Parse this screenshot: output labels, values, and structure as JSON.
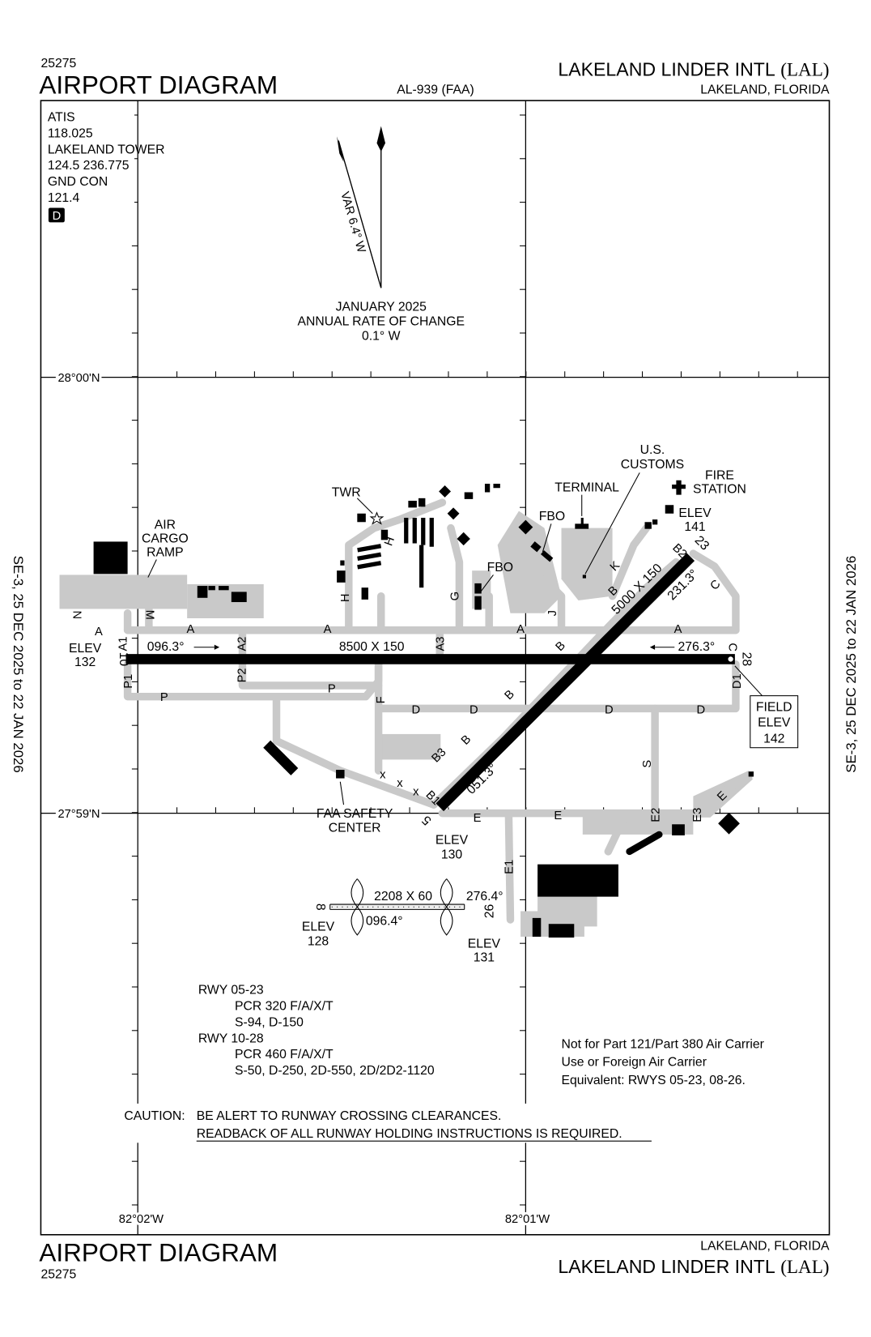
{
  "header": {
    "chart_number": "25275",
    "title": "AIRPORT DIAGRAM",
    "procedure_id": "AL-939 (FAA)",
    "airport_name": "LAKELAND LINDER INTL",
    "airport_id": "(LAL)",
    "location": "LAKELAND, FLORIDA"
  },
  "footer": {
    "chart_number": "25275",
    "title": "AIRPORT DIAGRAM",
    "airport_name": "LAKELAND LINDER INTL",
    "airport_id": "(LAL)",
    "location": "LAKELAND, FLORIDA"
  },
  "side_margin": {
    "left": "SE-3,  25 DEC 2025  to  22 JAN 2026",
    "right": "SE-3,  25 DEC 2025  to  22 JAN 2026"
  },
  "frequencies": [
    "ATIS",
    "118.025",
    "LAKELAND TOWER",
    "124.5 236.775",
    "GND CON",
    "121.4"
  ],
  "datalink_badge": "D",
  "magnetic": {
    "variation": "VAR 6.4° W",
    "date": "JANUARY 2025",
    "rate_label": "ANNUAL RATE OF CHANGE",
    "rate": "0.1° W"
  },
  "coordinates": {
    "lat_north": "28°00'N",
    "lat_south": "27°59'N",
    "lon_west": "82°02'W",
    "lon_east": "82°01'W"
  },
  "runways": {
    "r10_28": {
      "end_10": "10",
      "end_28": "28",
      "dims": "8500 X 150",
      "hdg_10": "096.3°",
      "hdg_28": "276.3°",
      "elev_label": "ELEV",
      "elev_10": "132"
    },
    "r05_23": {
      "end_5": "5",
      "end_23": "23",
      "dims": "5000 X 150",
      "hdg_5": "051.3°",
      "hdg_23": "231.3°",
      "elev_label": "ELEV",
      "elev_5": "130",
      "elev_23": "141"
    },
    "r08_26": {
      "end_8": "8",
      "end_26": "26",
      "dims": "2208 X 60",
      "hdg_8": "096.4°",
      "hdg_26": "276.4°",
      "elev_label": "ELEV",
      "elev_8": "128",
      "elev_26": "131"
    }
  },
  "field_elev": {
    "line1": "FIELD",
    "line2": "ELEV",
    "value": "142"
  },
  "facilities": {
    "twr": "TWR",
    "air_cargo": [
      "AIR",
      "CARGO",
      "RAMP"
    ],
    "fbo": "FBO",
    "terminal": "TERMINAL",
    "customs": [
      "U.S.",
      "CUSTOMS"
    ],
    "fire": [
      "FIRE",
      "STATION"
    ],
    "faa_safety": [
      "FAA SAFETY",
      "CENTER"
    ]
  },
  "taxiways": {
    "A": "A",
    "A1": "A1",
    "A2": "A2",
    "A3": "A3",
    "B": "B",
    "B1": "B1",
    "B2": "B2",
    "B3": "B3",
    "C": "C",
    "D": "D",
    "D1": "D1",
    "E": "E",
    "E1": "E1",
    "E2": "E2",
    "E3": "E3",
    "F": "F",
    "G": "G",
    "H": "H",
    "J": "J",
    "K": "K",
    "M": "M",
    "N": "N",
    "P": "P",
    "P1": "P1",
    "P2": "P2",
    "S": "S",
    "x": "x"
  },
  "runway_notes": [
    "RWY 05-23",
    "PCR 320 F/A/X/T",
    "S-94, D-150",
    "RWY 10-28",
    "PCR 460 F/A/X/T",
    "S-50, D-250, 2D-550, 2D/2D2-1120"
  ],
  "air_carrier_note": [
    "Not for Part 121/Part 380 Air Carrier",
    "Use or Foreign Air Carrier",
    "Equivalent: RWYS 05-23, 08-26."
  ],
  "caution": {
    "label": "CAUTION:",
    "line1": "BE ALERT TO RUNWAY CROSSING CLEARANCES.",
    "line2": "READBACK OF ALL RUNWAY HOLDING INSTRUCTIONS IS REQUIRED."
  }
}
